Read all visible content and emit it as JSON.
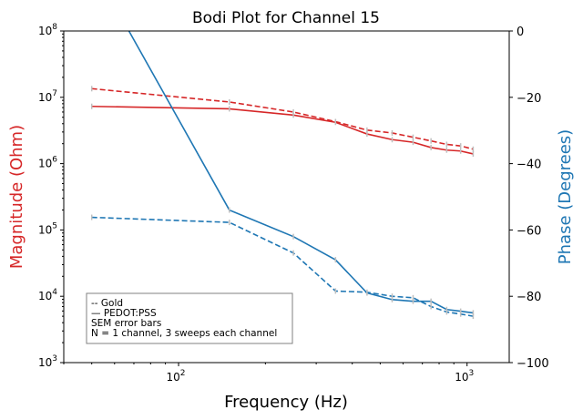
{
  "chart_data": {
    "type": "line",
    "title": "Bodi Plot for Channel 15",
    "xlabel": "Frequency (Hz)",
    "ylabel_left": "Magnitude (Ohm)",
    "ylabel_right": "Phase (Degrees)",
    "x_scale": "log",
    "y_left_scale": "log",
    "x_range": [
      40,
      1400
    ],
    "y_left_range": [
      1000,
      100000000
    ],
    "y_right_range": [
      -100,
      0
    ],
    "x_tick_labels": [
      "10^2",
      "10^3"
    ],
    "y_left_tick_labels": [
      "10^3",
      "10^4",
      "10^5",
      "10^6",
      "10^7",
      "10^8"
    ],
    "y_right_tick_labels": [
      "0",
      "−20",
      "−40",
      "−60",
      "−80",
      "−100"
    ],
    "grid": false,
    "colors": {
      "magnitude": "#d62728",
      "phase": "#1f77b4",
      "errorbar": "#bfbfbf"
    },
    "series": [
      {
        "axis": "left",
        "style": "solid",
        "color": "#d62728",
        "x": [
          50,
          150,
          250,
          350,
          450,
          550,
          650,
          750,
          850,
          950,
          1050
        ],
        "values": [
          7300000,
          6700000,
          5400000,
          4200000,
          2800000,
          2300000,
          2100000,
          1750000,
          1600000,
          1550000,
          1400000
        ]
      },
      {
        "axis": "left",
        "style": "dashed",
        "color": "#d62728",
        "x": [
          50,
          150,
          250,
          350,
          450,
          550,
          650,
          750,
          850,
          950,
          1050
        ],
        "values": [
          13500000,
          8500000,
          6000000,
          4300000,
          3200000,
          2900000,
          2500000,
          2200000,
          1950000,
          1850000,
          1650000
        ]
      },
      {
        "axis": "right",
        "style": "solid",
        "color": "#1f77b4",
        "x": [
          50,
          150,
          250,
          350,
          450,
          550,
          650,
          750,
          850,
          950,
          1050
        ],
        "values": [
          20,
          -54,
          -62,
          -69,
          -79,
          -81,
          -81.5,
          -81.5,
          -84,
          -84.5,
          -85
        ]
      },
      {
        "axis": "left",
        "style": "dashed",
        "color": "#1f77b4",
        "x": [
          50,
          150,
          250,
          350,
          450,
          550,
          650,
          750,
          850,
          950,
          1050
        ],
        "values": [
          155000,
          130000,
          45000,
          12000,
          11500,
          10000,
          9500,
          7000,
          5800,
          5400,
          5000
        ]
      }
    ],
    "legend": {
      "position": "lower-left",
      "lines": [
        "-- Gold",
        "— PEDOT:PSS",
        "SEM error bars",
        "N = 1 channel, 3 sweeps each channel"
      ]
    }
  }
}
